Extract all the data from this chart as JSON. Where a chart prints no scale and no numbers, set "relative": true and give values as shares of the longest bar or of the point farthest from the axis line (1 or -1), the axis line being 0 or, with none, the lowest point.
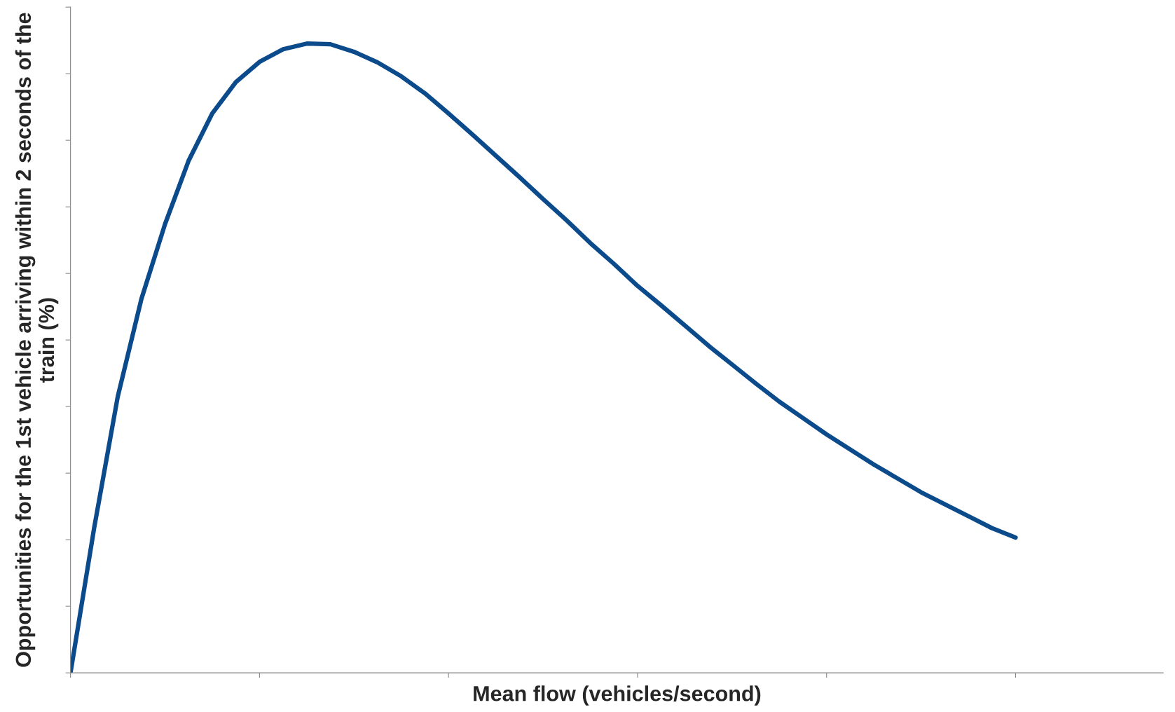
{
  "chart_data": {
    "type": "line",
    "relative": true,
    "xlabel": "Mean flow (vehicles/second)",
    "ylabel": "Opportunities for the 1st vehicle arriving within 2 seconds of the train (%)",
    "categories": [
      null,
      null,
      null,
      null,
      null,
      null,
      null,
      null,
      null,
      null,
      null,
      null,
      null,
      null,
      null,
      null,
      null,
      null,
      null,
      null,
      null,
      null,
      null,
      null,
      null,
      null,
      null,
      null,
      null,
      null,
      null,
      null,
      null,
      null,
      null,
      null,
      null,
      null,
      null,
      null,
      null,
      null,
      null,
      null,
      null,
      null,
      null
    ],
    "series": [
      {
        "color": "#0b4a8b",
        "values": [
          0,
          0.23,
          0.439,
          0.594,
          0.713,
          0.814,
          0.889,
          0.939,
          0.971,
          0.991,
          1,
          0.999,
          0.987,
          0.97,
          0.948,
          0.921,
          0.889,
          0.856,
          0.822,
          0.788,
          0.753,
          0.719,
          0.683,
          0.65,
          0.615,
          0.584,
          0.552,
          0.52,
          0.49,
          0.46,
          0.431,
          0.405,
          0.379,
          0.355,
          0.331,
          0.309,
          0.287,
          0.268,
          0.249,
          0.23,
          0.215,
          null,
          null,
          null,
          null,
          null,
          null
        ]
      }
    ],
    "grid": false,
    "legend": false,
    "tick_labels": false
  }
}
